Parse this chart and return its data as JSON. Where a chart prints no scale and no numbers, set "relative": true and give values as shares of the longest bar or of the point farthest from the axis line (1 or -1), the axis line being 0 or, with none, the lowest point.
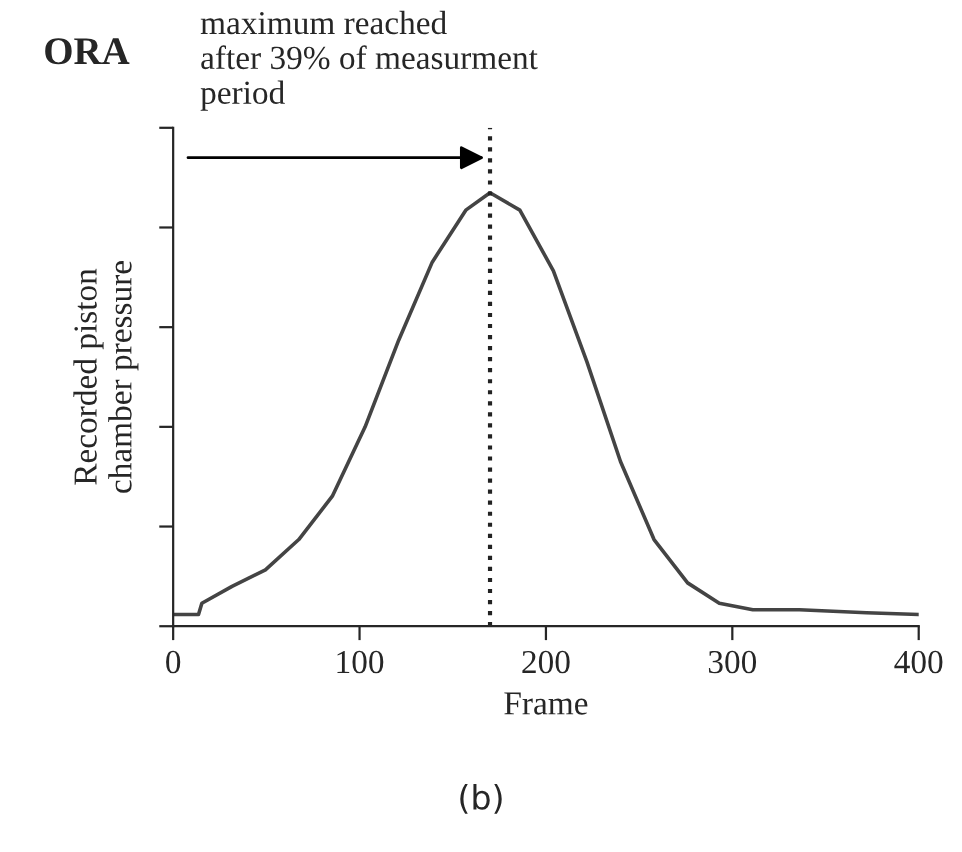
{
  "chart_data": {
    "type": "line",
    "title": "ORA",
    "xlabel": "Frame",
    "ylabel": "Recorded piston\nchamber pressure",
    "relative": true,
    "color": "#444444",
    "x": [
      0,
      13.6,
      15.4,
      31.6,
      49.5,
      67.4,
      85.4,
      103,
      121,
      139,
      157,
      170,
      186,
      204,
      222,
      240,
      258,
      276,
      293,
      311,
      336,
      372,
      400
    ],
    "values": [
      0.027,
      0.027,
      0.053,
      0.092,
      0.13,
      0.2,
      0.3,
      0.46,
      0.66,
      0.84,
      0.96,
      1.0,
      0.96,
      0.82,
      0.61,
      0.38,
      0.2,
      0.1,
      0.053,
      0.038,
      0.038,
      0.031,
      0.027
    ],
    "xlim": [
      0,
      400
    ],
    "xticks": [
      0,
      100,
      200,
      300,
      400
    ],
    "ref_lines": [
      {
        "axis": "x",
        "value": 170,
        "line_style": "dotted",
        "color": "#222222",
        "label": "maximum reached\nafter 39% of measurment\nperiod"
      }
    ],
    "annotations": [
      "(b)"
    ]
  }
}
